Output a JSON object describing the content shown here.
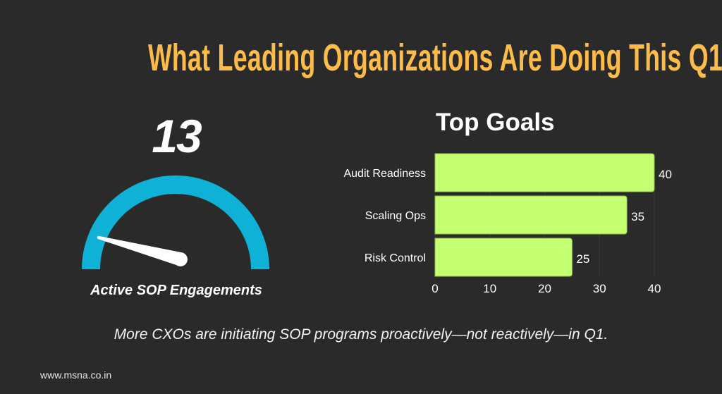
{
  "header": {
    "title": "What Leading Organizations Are Doing This Q1"
  },
  "gauge": {
    "value": "13",
    "label": "Active SOP Engagements",
    "arc_color": "#0fb2d6",
    "needle_color": "#ffffff"
  },
  "caption": "More CXOs are initiating SOP programs proactively—not reactively—in Q1.",
  "footer": {
    "url": "www.msna.co.in"
  },
  "colors": {
    "background": "#2a2a2a",
    "title": "#fdbb4a",
    "bar": "#c5ff72",
    "gauge": "#0fb2d6"
  },
  "chart_data": {
    "type": "bar",
    "orientation": "horizontal",
    "title": "Top Goals",
    "categories": [
      "Audit Readiness",
      "Scaling Ops",
      "Risk Control"
    ],
    "values": [
      40,
      35,
      25
    ],
    "data_labels": [
      "40",
      "35",
      "25"
    ],
    "xlabel": "",
    "ylabel": "",
    "xlim": [
      0,
      40
    ],
    "x_ticks": [
      "0",
      "10",
      "20",
      "30",
      "40"
    ],
    "grid": "vertical",
    "legend": "none",
    "bar_color": "#c5ff72"
  }
}
